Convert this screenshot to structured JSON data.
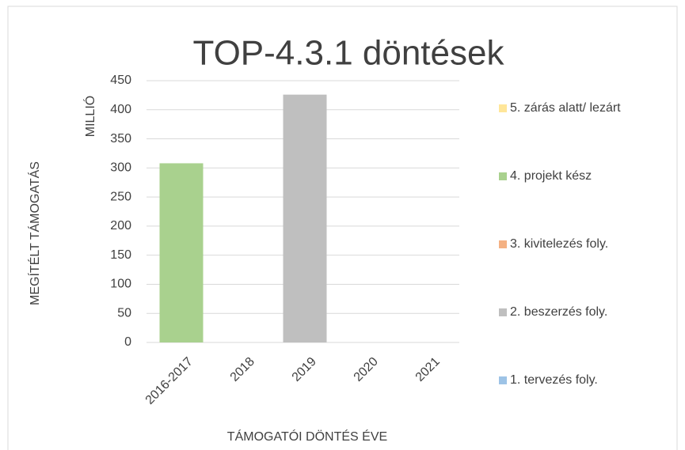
{
  "chart_data": {
    "type": "bar",
    "stacked": true,
    "title": "TOP-4.3.1 döntések",
    "ylabel": "MEGÍTÉLT TÁMOGATÁS",
    "yunit": "MILLIÓ",
    "xlabel": "TÁMOGATÓI DÖNTÉS ÉVE",
    "categories": [
      "2016-2017",
      "2018",
      "2019",
      "2020",
      "2021"
    ],
    "series": [
      {
        "name": "1. tervezés foly.",
        "color": "#9dc3e6",
        "values": [
          0,
          0,
          0,
          0,
          0
        ]
      },
      {
        "name": "2. beszerzés foly.",
        "color": "#bfbfbf",
        "values": [
          0,
          0,
          426,
          0,
          0
        ]
      },
      {
        "name": "3. kivitelezés foly.",
        "color": "#f4b183",
        "values": [
          0,
          0,
          0,
          0,
          0
        ]
      },
      {
        "name": "4. projekt kész",
        "color": "#a9d18e",
        "values": [
          308,
          0,
          0,
          0,
          0
        ]
      },
      {
        "name": "5. zárás alatt/ lezárt",
        "color": "#ffe699",
        "values": [
          0,
          0,
          0,
          0,
          0
        ]
      }
    ],
    "ylim": [
      0,
      450
    ],
    "yticks": [
      0,
      50,
      100,
      150,
      200,
      250,
      300,
      350,
      400,
      450
    ],
    "grid": true,
    "legend": "right"
  }
}
